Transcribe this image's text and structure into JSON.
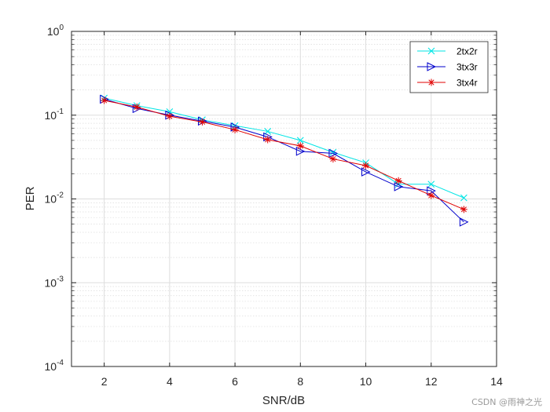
{
  "chart_data": {
    "type": "line",
    "title": "",
    "xlabel": "SNR/dB",
    "ylabel": "PER",
    "xlim": [
      1,
      14
    ],
    "ylim": [
      0.0001,
      1
    ],
    "yscale": "log",
    "grid": true,
    "minor_grid": true,
    "legend_position": "top-right",
    "x_ticks": [
      2,
      4,
      6,
      8,
      10,
      12,
      14
    ],
    "y_ticks": [
      {
        "value": 0.0001,
        "base": "10",
        "exp": "-4"
      },
      {
        "value": 0.001,
        "base": "10",
        "exp": "-3"
      },
      {
        "value": 0.01,
        "base": "10",
        "exp": "-2"
      },
      {
        "value": 0.1,
        "base": "10",
        "exp": "-1"
      },
      {
        "value": 1,
        "base": "10",
        "exp": "0"
      }
    ],
    "x": [
      2,
      3,
      4,
      5,
      6,
      7,
      8,
      9,
      10,
      11,
      12,
      13
    ],
    "series": [
      {
        "name": "2tx2r",
        "color": "#00e5e5",
        "marker": "x",
        "values": [
          0.16,
          0.13,
          0.11,
          0.088,
          0.075,
          0.064,
          0.05,
          0.036,
          0.027,
          0.015,
          0.015,
          0.0103
        ]
      },
      {
        "name": "3tx3r",
        "color": "#0000cc",
        "marker": "triangle-right",
        "values": [
          0.155,
          0.12,
          0.1,
          0.085,
          0.072,
          0.055,
          0.037,
          0.035,
          0.021,
          0.014,
          0.0125,
          0.0053
        ]
      },
      {
        "name": "3tx4r",
        "color": "#e00000",
        "marker": "asterisk",
        "values": [
          0.15,
          0.125,
          0.097,
          0.083,
          0.067,
          0.051,
          0.043,
          0.03,
          0.025,
          0.0165,
          0.011,
          0.0075
        ]
      }
    ]
  },
  "watermark": "CSDN @雨神之光"
}
